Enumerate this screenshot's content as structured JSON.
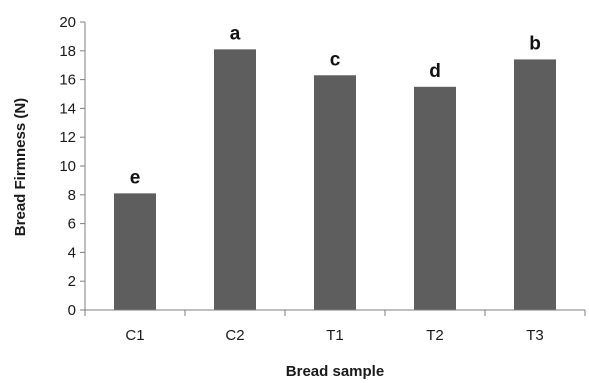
{
  "chart_data": {
    "type": "bar",
    "title": "",
    "xlabel": "Bread sample",
    "ylabel": "Bread Firmness (N)",
    "categories": [
      "C1",
      "C2",
      "T1",
      "T2",
      "T3"
    ],
    "values": [
      8.1,
      18.1,
      16.3,
      15.5,
      17.4
    ],
    "data_labels": [
      "e",
      "a",
      "c",
      "d",
      "b"
    ],
    "ylim": [
      0,
      20
    ],
    "yticks": [
      0,
      2,
      4,
      6,
      8,
      10,
      12,
      14,
      16,
      18,
      20
    ],
    "grid": false,
    "legend": "none",
    "bar_color": "#5e5e5e",
    "axis_color": "#7f7f7f"
  }
}
